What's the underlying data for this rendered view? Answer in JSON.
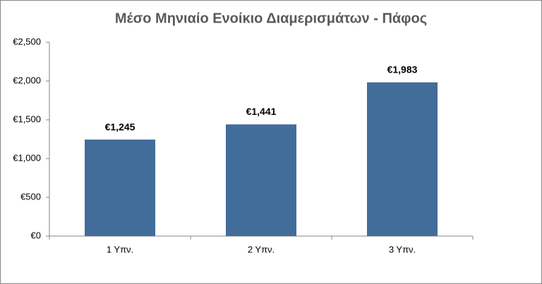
{
  "chart_data": {
    "type": "bar",
    "title": "Μέσο Μηνιαίο Ενοίκιο Διαμερισμάτων - Πάφος",
    "categories": [
      "1 Υπν.",
      "2 Υπν.",
      "3 Υπν."
    ],
    "values": [
      1245,
      1441,
      1983
    ],
    "value_labels": [
      "€1,245",
      "€1,441",
      "€1,983"
    ],
    "color": "#426d9a",
    "ylim": [
      0,
      2500
    ],
    "yticks": [
      {
        "value": 0,
        "label": "€0"
      },
      {
        "value": 500,
        "label": "€500"
      },
      {
        "value": 1000,
        "label": "€1,000"
      },
      {
        "value": 1500,
        "label": "€1,500"
      },
      {
        "value": 2000,
        "label": "€2,000"
      },
      {
        "value": 2500,
        "label": "€2,500"
      }
    ],
    "grid": false
  }
}
